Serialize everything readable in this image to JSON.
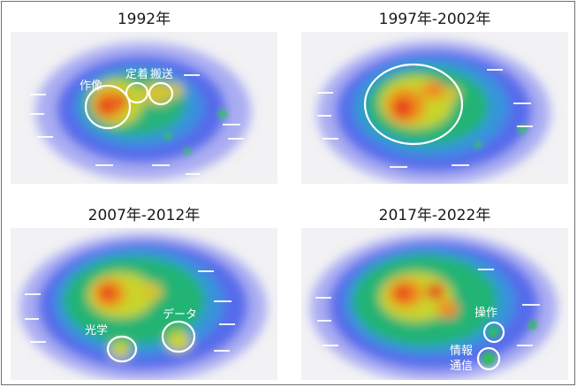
{
  "panels": [
    {
      "title": "1992年",
      "labels": [
        "作像",
        "定着",
        "搬送"
      ]
    },
    {
      "title": "1997年-2002年",
      "labels": []
    },
    {
      "title": "2007年-2012年",
      "labels": [
        "光学",
        "データ"
      ]
    },
    {
      "title": "2017年-2022年",
      "labels": [
        "操作",
        "情報",
        "通信"
      ]
    }
  ]
}
